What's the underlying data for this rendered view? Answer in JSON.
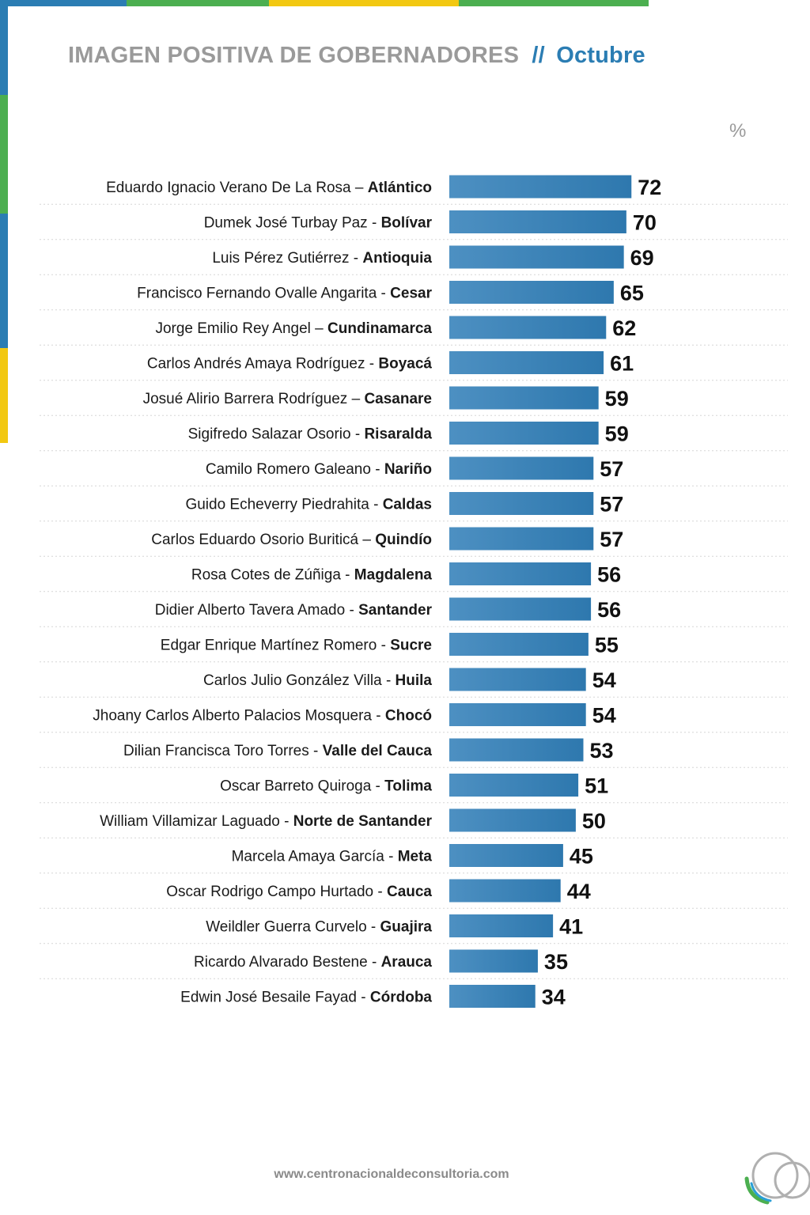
{
  "header": {
    "title": "IMAGEN POSITIVA DE GOBERNADORES",
    "separator": "//",
    "month": "Octubre"
  },
  "unit_label": "%",
  "footer": {
    "url": "www.centronacionaldeconsultoria.com"
  },
  "colors": {
    "bar_light": "#4d90c2",
    "bar_dark": "#2e78ae",
    "title_gray": "#9a9a9a",
    "accent_blue": "#2b7db3",
    "stripe_green": "#4caf50",
    "stripe_yellow": "#f2c811",
    "stripe_blue": "#2b7db3"
  },
  "chart_data": {
    "type": "bar",
    "orientation": "horizontal",
    "title": "IMAGEN POSITIVA DE GOBERNADORES // Octubre",
    "unit": "%",
    "xlim": [
      0,
      100
    ],
    "grid": false,
    "data_labels": true,
    "categories": [
      {
        "name": "Eduardo Ignacio Verano De La Rosa",
        "sep": "–",
        "region": "Atlántico"
      },
      {
        "name": "Dumek José Turbay Paz",
        "sep": "-",
        "region": "Bolívar"
      },
      {
        "name": "Luis Pérez Gutiérrez",
        "sep": "-",
        "region": "Antioquia"
      },
      {
        "name": "Francisco Fernando Ovalle Angarita",
        "sep": "-",
        "region": "Cesar"
      },
      {
        "name": "Jorge Emilio Rey Angel",
        "sep": "–",
        "region": "Cundinamarca"
      },
      {
        "name": "Carlos Andrés Amaya Rodríguez",
        "sep": "-",
        "region": "Boyacá"
      },
      {
        "name": "Josué Alirio Barrera Rodríguez",
        "sep": "–",
        "region": "Casanare"
      },
      {
        "name": "Sigifredo Salazar Osorio",
        "sep": "-",
        "region": "Risaralda"
      },
      {
        "name": "Camilo Romero Galeano",
        "sep": "-",
        "region": "Nariño"
      },
      {
        "name": "Guido Echeverry Piedrahita",
        "sep": "-",
        "region": "Caldas"
      },
      {
        "name": "Carlos Eduardo Osorio Buriticá",
        "sep": "–",
        "region": "Quindío"
      },
      {
        "name": "Rosa Cotes de Zúñiga",
        "sep": "-",
        "region": "Magdalena"
      },
      {
        "name": "Didier Alberto Tavera Amado",
        "sep": "-",
        "region": "Santander"
      },
      {
        "name": "Edgar Enrique Martínez Romero",
        "sep": "-",
        "region": "Sucre"
      },
      {
        "name": "Carlos Julio González Villa",
        "sep": "-",
        "region": "Huila"
      },
      {
        "name": "Jhoany Carlos Alberto Palacios Mosquera",
        "sep": "-",
        "region": "Chocó"
      },
      {
        "name": "Dilian Francisca Toro Torres",
        "sep": "-",
        "region": "Valle del Cauca"
      },
      {
        "name": "Oscar Barreto Quiroga",
        "sep": "-",
        "region": "Tolima"
      },
      {
        "name": "William Villamizar Laguado",
        "sep": "-",
        "region": "Norte de Santander"
      },
      {
        "name": "Marcela Amaya García",
        "sep": "-",
        "region": "Meta"
      },
      {
        "name": "Oscar Rodrigo Campo Hurtado",
        "sep": "-",
        "region": "Cauca"
      },
      {
        "name": "Weildler Guerra Curvelo",
        "sep": "-",
        "region": "Guajira"
      },
      {
        "name": "Ricardo Alvarado Bestene",
        "sep": "-",
        "region": "Arauca"
      },
      {
        "name": "Edwin José Besaile Fayad",
        "sep": "-",
        "region": "Córdoba"
      }
    ],
    "values": [
      72,
      70,
      69,
      65,
      62,
      61,
      59,
      59,
      57,
      57,
      57,
      56,
      56,
      55,
      54,
      54,
      53,
      51,
      50,
      45,
      44,
      41,
      35,
      34
    ]
  }
}
